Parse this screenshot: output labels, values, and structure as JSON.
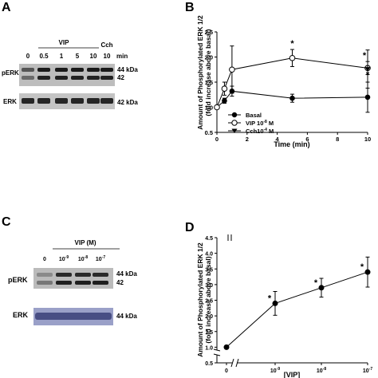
{
  "panel_letters": {
    "a": "A",
    "b": "B",
    "c": "C",
    "d": "D"
  },
  "blot_a": {
    "group_label": "VIP",
    "cch_label": "Cch",
    "cch_time": "10",
    "min_label": "min",
    "lanes": [
      "0",
      "0.5",
      "1",
      "5",
      "10"
    ],
    "row_labels": [
      "pERK",
      "ERK"
    ],
    "kda_perk": [
      "44 kDa",
      "42"
    ],
    "kda_erk": "42 kDa"
  },
  "blot_c": {
    "group_label": "VIP (M)",
    "lanes": [
      "0",
      "10",
      "10",
      "10"
    ],
    "lane_exps": [
      "",
      "-9",
      "-8",
      "-7"
    ],
    "row_labels": [
      "pERK",
      "ERK"
    ],
    "kda_perk": [
      "44 kDa",
      "42"
    ],
    "kda_erk": "44 kDa"
  },
  "chart_data": [
    {
      "panel": "B",
      "type": "line",
      "ylabel_lines": [
        "Amount of Phosphorylated ERK 1/2",
        "(fold increase above basal)"
      ],
      "xlabel": "Time (min)",
      "xlim": [
        0,
        10
      ],
      "ylim": [
        0.5,
        2.5
      ],
      "xticks": [
        "0",
        "2",
        "4",
        "6",
        "8",
        "10"
      ],
      "yticks": [
        "0.5",
        "1.0",
        "1.5",
        "2.0",
        "2.5"
      ],
      "legend_position": "center-right",
      "series": [
        {
          "name": "Basal",
          "marker": "filled-circle",
          "x": [
            0,
            0.5,
            1,
            5,
            10
          ],
          "y": [
            1.0,
            1.13,
            1.32,
            1.18,
            1.2
          ],
          "err": [
            0,
            0.05,
            0.1,
            0.08,
            0.3
          ]
        },
        {
          "name": "VIP 10",
          "name_exp": "-8",
          "name_tail": " M",
          "marker": "open-circle",
          "x": [
            0,
            0.5,
            1,
            5,
            10
          ],
          "y": [
            1.0,
            1.37,
            1.75,
            1.98,
            1.78
          ],
          "err": [
            0,
            0.13,
            0.47,
            0.17,
            0.13
          ],
          "significant": [
            false,
            false,
            false,
            true,
            true
          ]
        },
        {
          "name": "Cch10",
          "name_exp": "-4",
          "name_tail": " M",
          "marker": "filled-triangle-down",
          "x": [
            10
          ],
          "y": [
            1.76
          ],
          "err": [
            0.38
          ],
          "significant": [
            true
          ]
        }
      ],
      "sig_symbol": "*"
    },
    {
      "panel": "D",
      "type": "line",
      "ylabel_lines": [
        "Amount of Phosphorylated ERK 1/2",
        "(fold increase above basal)"
      ],
      "xlabel": "[VIP]",
      "ylim": [
        0.5,
        4.5
      ],
      "yticks": [
        "0.5",
        "1.0",
        "1.5",
        "2.0",
        "2.5",
        "3.0",
        "3.5",
        "4.0",
        "4.5"
      ],
      "xticks": [
        {
          "base": "0",
          "exp": ""
        },
        {
          "base": "10",
          "exp": "-9"
        },
        {
          "base": "10",
          "exp": "-8"
        },
        {
          "base": "10",
          "exp": "-7"
        }
      ],
      "axis_breaks": true,
      "series": [
        {
          "name": "",
          "marker": "filled-circle",
          "x": [
            "0",
            "1e-9",
            "1e-8",
            "1e-7"
          ],
          "y": [
            1.0,
            2.4,
            2.9,
            3.4
          ],
          "err": [
            0.05,
            0.38,
            0.3,
            0.48
          ],
          "significant": [
            false,
            true,
            true,
            true
          ]
        }
      ],
      "sig_symbol": "*"
    }
  ]
}
